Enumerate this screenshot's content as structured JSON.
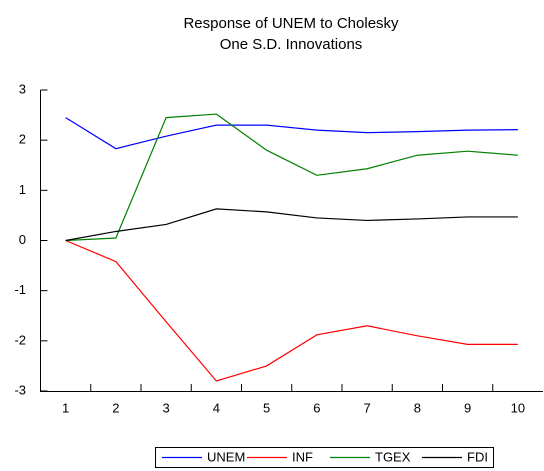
{
  "chart_data": {
    "type": "line",
    "title": [
      "Response of UNEM to Cholesky",
      "One S.D. Innovations"
    ],
    "categories": [
      "1",
      "2",
      "3",
      "4",
      "5",
      "6",
      "7",
      "8",
      "9",
      "10"
    ],
    "series": [
      {
        "name": "UNEM",
        "color": "#0000ff",
        "values": [
          2.45,
          1.83,
          2.08,
          2.3,
          2.3,
          2.2,
          2.15,
          2.17,
          2.2,
          2.21
        ]
      },
      {
        "name": "INF",
        "color": "#ff0000",
        "values": [
          0,
          -0.42,
          -1.62,
          -2.8,
          -2.5,
          -1.88,
          -1.7,
          -1.9,
          -2.07,
          -2.07
        ]
      },
      {
        "name": "TGEX",
        "color": "#008000",
        "values": [
          0,
          0.05,
          2.45,
          2.52,
          1.8,
          1.3,
          1.43,
          1.7,
          1.78,
          1.7
        ]
      },
      {
        "name": "FDI",
        "color": "#000000",
        "values": [
          0,
          0.18,
          0.32,
          0.63,
          0.57,
          0.45,
          0.4,
          0.43,
          0.47,
          0.47
        ]
      }
    ],
    "ylim": [
      -3,
      3
    ],
    "yticks": [
      -3,
      -2,
      -1,
      0,
      1,
      2,
      3
    ],
    "legend": "bottom"
  }
}
